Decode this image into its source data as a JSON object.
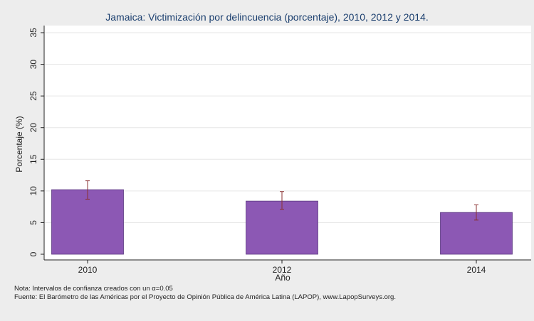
{
  "chart_data": {
    "type": "bar",
    "title": "Jamaica: Victimización por delincuencia (porcentaje), 2010, 2012 y 2014.",
    "xlabel": "Año",
    "ylabel": "Porcentaje (%)",
    "categories": [
      "2010",
      "2012",
      "2014"
    ],
    "values": [
      10.2,
      8.4,
      6.6
    ],
    "ci_low": [
      8.7,
      7.1,
      5.4
    ],
    "ci_high": [
      11.6,
      9.9,
      7.8
    ],
    "ylim": [
      0,
      35
    ],
    "yticks": [
      0,
      5,
      10,
      15,
      20,
      25,
      30,
      35
    ],
    "grid": true,
    "bar_color": "#8c58b4",
    "errorbar_color": "#8a3030"
  },
  "notes": {
    "nota": "Nota: Intervalos de confianza creados con un α=0.05",
    "fuente": "Fuente: El Barómetro de las Américas por el Proyecto de Opinión Pública de América Latina (LAPOP), www.LapopSurveys.org."
  }
}
